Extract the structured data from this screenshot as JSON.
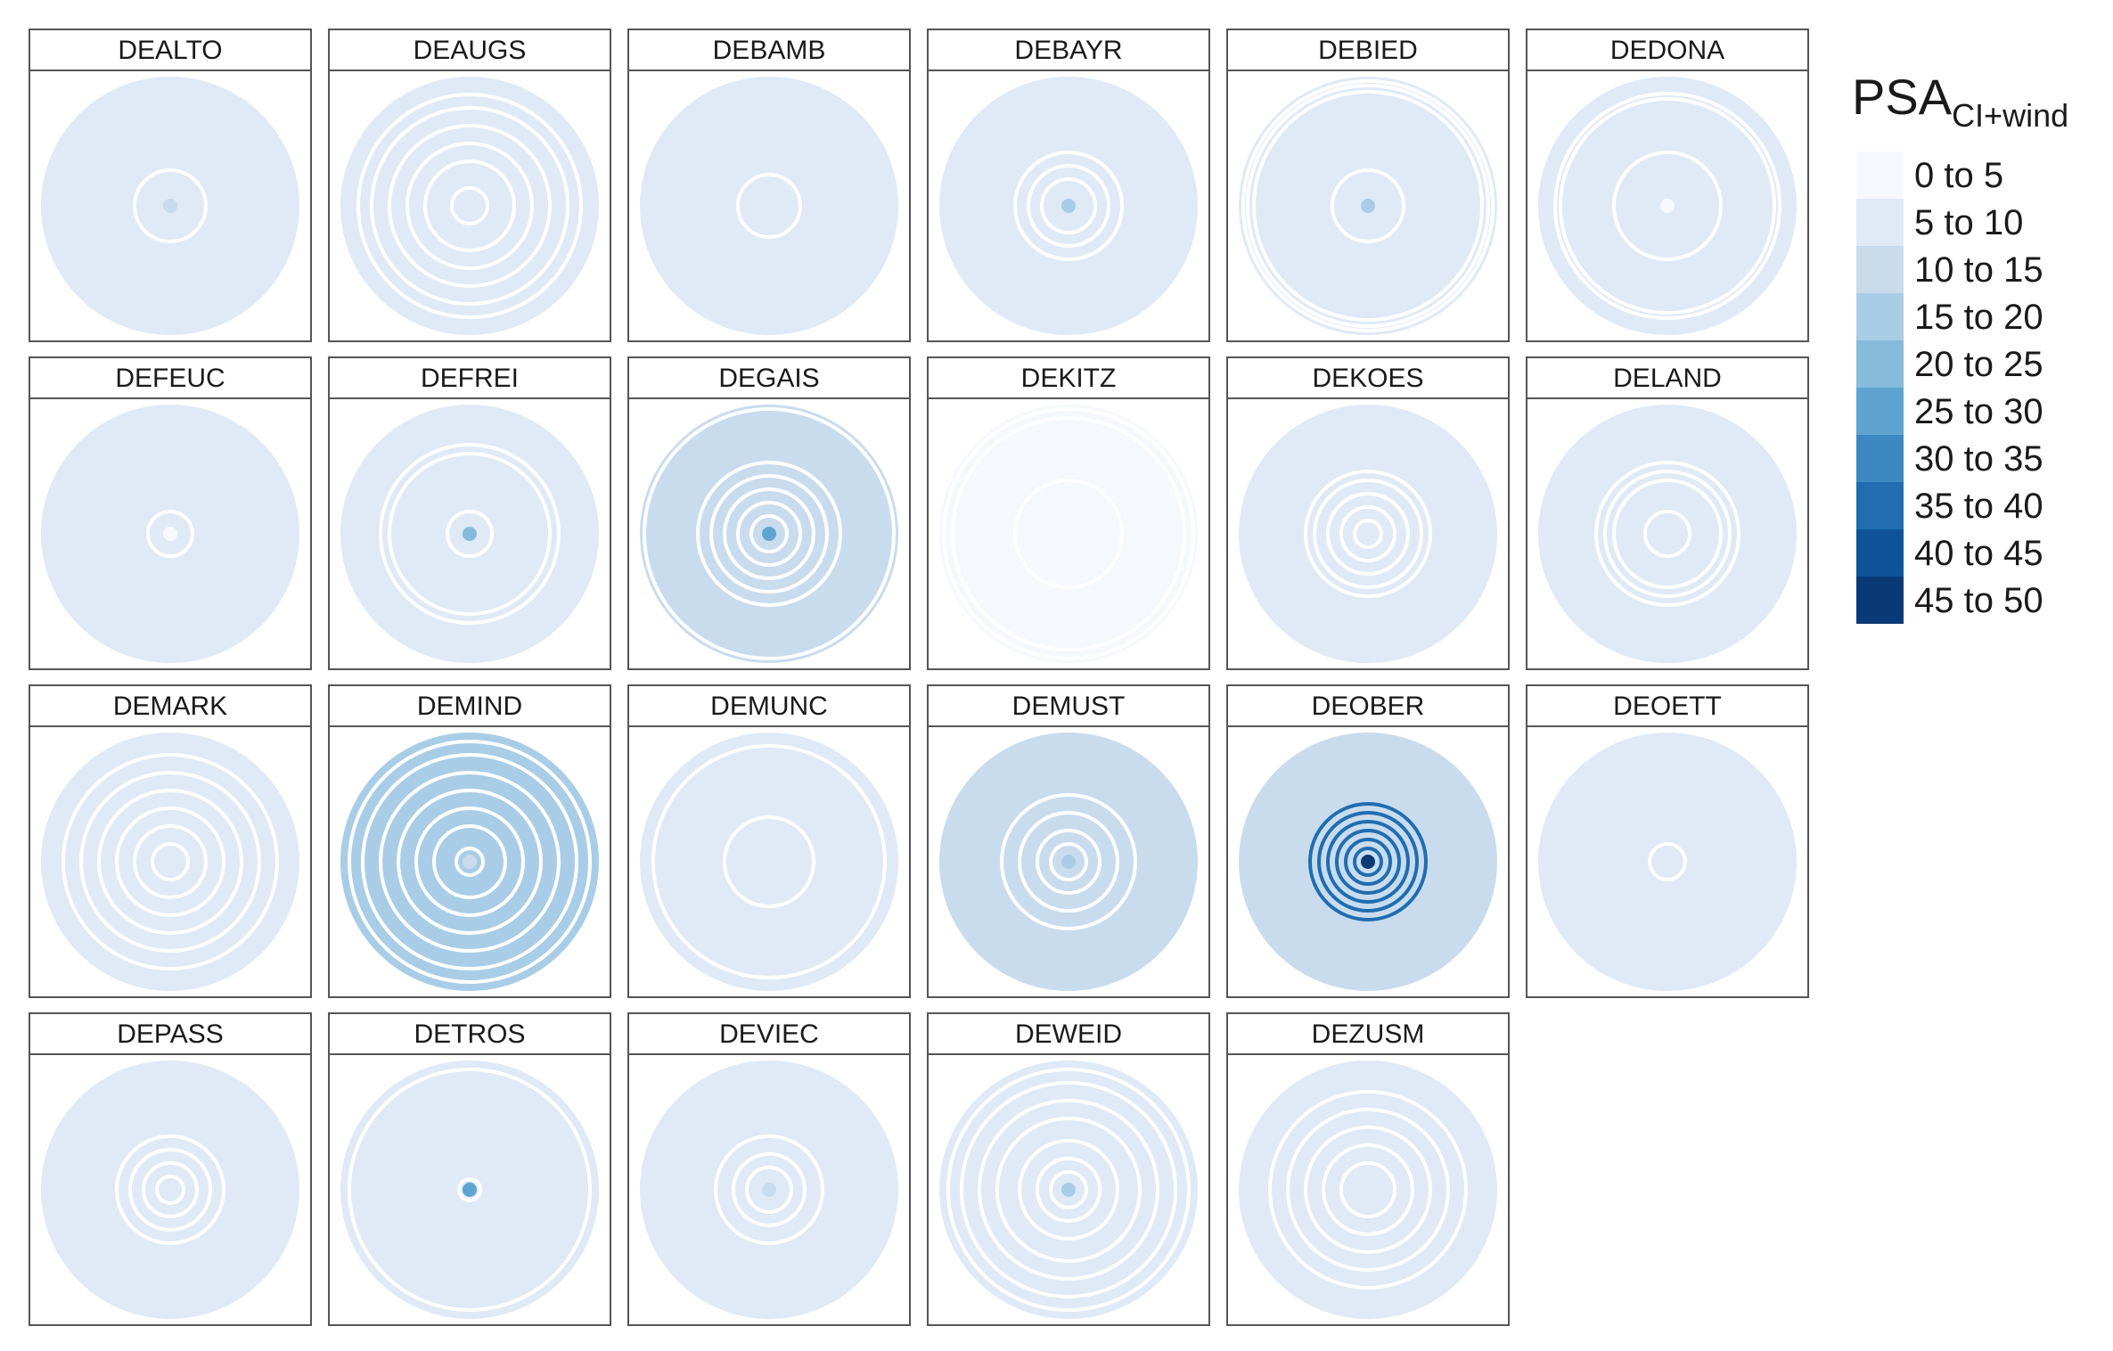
{
  "panels": [
    {
      "label": "DEALTO"
    },
    {
      "label": "DEAUGS"
    },
    {
      "label": "DEBAMB"
    },
    {
      "label": "DEBAYR"
    },
    {
      "label": "DEBIED"
    },
    {
      "label": "DEDONA"
    },
    {
      "label": "DEFEUC"
    },
    {
      "label": "DEFREI"
    },
    {
      "label": "DEGAIS"
    },
    {
      "label": "DEKITZ"
    },
    {
      "label": "DEKOES"
    },
    {
      "label": "DELAND"
    },
    {
      "label": "DEMARK"
    },
    {
      "label": "DEMIND"
    },
    {
      "label": "DEMUNC"
    },
    {
      "label": "DEMUST"
    },
    {
      "label": "DEOBER"
    },
    {
      "label": "DEOETT"
    },
    {
      "label": "DEPASS"
    },
    {
      "label": "DETROS"
    },
    {
      "label": "DEVIEC"
    },
    {
      "label": "DEWEID"
    },
    {
      "label": "DEZUSM"
    }
  ],
  "legend": {
    "title": "PSA",
    "title_subscript": "CI+wind",
    "items": [
      {
        "label": "0 to 5",
        "color": "#f5f9fe"
      },
      {
        "label": "5 to 10",
        "color": "#dfeaf6"
      },
      {
        "label": "10 to 15",
        "color": "#c9dcee"
      },
      {
        "label": "15 to 20",
        "color": "#a9cde6"
      },
      {
        "label": "20 to 25",
        "color": "#86bbdc"
      },
      {
        "label": "25 to 30",
        "color": "#5fa4d1"
      },
      {
        "label": "30 to 35",
        "color": "#3c89c2"
      },
      {
        "label": "35 to 40",
        "color": "#206db0"
      },
      {
        "label": "40 to 45",
        "color": "#0f5498"
      },
      {
        "label": "45 to 50",
        "color": "#0a3a76"
      }
    ]
  }
}
